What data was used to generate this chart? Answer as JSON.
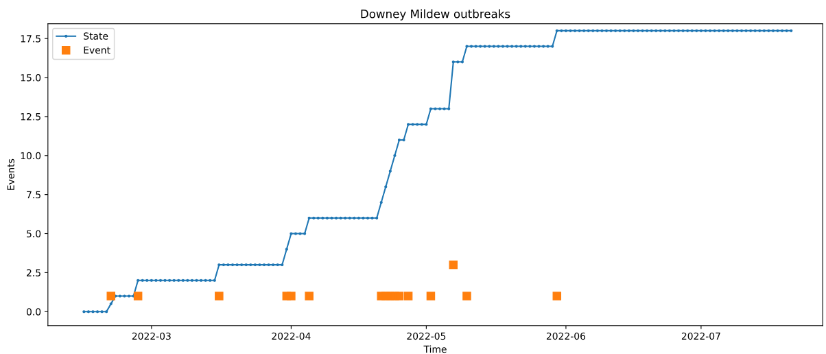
{
  "chart_data": {
    "type": "line",
    "title": "Downey Mildew outbreaks",
    "xlabel": "Time",
    "ylabel": "Events",
    "xlim": [
      "2022-02-06",
      "2022-07-28"
    ],
    "xticks": [
      {
        "value": "2022-03-01",
        "label": "2022-03"
      },
      {
        "value": "2022-04-01",
        "label": "2022-04"
      },
      {
        "value": "2022-05-01",
        "label": "2022-05"
      },
      {
        "value": "2022-06-01",
        "label": "2022-06"
      },
      {
        "value": "2022-07-01",
        "label": "2022-07"
      }
    ],
    "ylim": [
      -0.9,
      18.45
    ],
    "yticks": [
      {
        "value": 0,
        "label": "0.0"
      },
      {
        "value": 2.5,
        "label": "2.5"
      },
      {
        "value": 5,
        "label": "5.0"
      },
      {
        "value": 7.5,
        "label": "7.5"
      },
      {
        "value": 10,
        "label": "10.0"
      },
      {
        "value": 12.5,
        "label": "12.5"
      },
      {
        "value": 15,
        "label": "15.0"
      },
      {
        "value": 17.5,
        "label": "17.5"
      }
    ],
    "legend": "top left",
    "series": [
      {
        "name": "State",
        "color": "#1f77b4",
        "marker": "circle",
        "line_style": "solid",
        "x": [
          "2022-02-14",
          "2022-02-15",
          "2022-02-16",
          "2022-02-17",
          "2022-02-18",
          "2022-02-19",
          "2022-02-20",
          "2022-02-21",
          "2022-02-22",
          "2022-02-23",
          "2022-02-24",
          "2022-02-25",
          "2022-02-26",
          "2022-02-27",
          "2022-02-28",
          "2022-03-01",
          "2022-03-02",
          "2022-03-03",
          "2022-03-04",
          "2022-03-05",
          "2022-03-06",
          "2022-03-07",
          "2022-03-08",
          "2022-03-09",
          "2022-03-10",
          "2022-03-11",
          "2022-03-12",
          "2022-03-13",
          "2022-03-14",
          "2022-03-15",
          "2022-03-16",
          "2022-03-17",
          "2022-03-18",
          "2022-03-19",
          "2022-03-20",
          "2022-03-21",
          "2022-03-22",
          "2022-03-23",
          "2022-03-24",
          "2022-03-25",
          "2022-03-26",
          "2022-03-27",
          "2022-03-28",
          "2022-03-29",
          "2022-03-30",
          "2022-03-31",
          "2022-04-01",
          "2022-04-02",
          "2022-04-03",
          "2022-04-04",
          "2022-04-05",
          "2022-04-06",
          "2022-04-07",
          "2022-04-08",
          "2022-04-09",
          "2022-04-10",
          "2022-04-11",
          "2022-04-12",
          "2022-04-13",
          "2022-04-14",
          "2022-04-15",
          "2022-04-16",
          "2022-04-17",
          "2022-04-18",
          "2022-04-19",
          "2022-04-20",
          "2022-04-21",
          "2022-04-22",
          "2022-04-23",
          "2022-04-24",
          "2022-04-25",
          "2022-04-26",
          "2022-04-27",
          "2022-04-28",
          "2022-04-29",
          "2022-04-30",
          "2022-05-01",
          "2022-05-02",
          "2022-05-03",
          "2022-05-04",
          "2022-05-05",
          "2022-05-06",
          "2022-05-07",
          "2022-05-08",
          "2022-05-09",
          "2022-05-10",
          "2022-05-11",
          "2022-05-12",
          "2022-05-13",
          "2022-05-14",
          "2022-05-15",
          "2022-05-16",
          "2022-05-17",
          "2022-05-18",
          "2022-05-19",
          "2022-05-20",
          "2022-05-21",
          "2022-05-22",
          "2022-05-23",
          "2022-05-24",
          "2022-05-25",
          "2022-05-26",
          "2022-05-27",
          "2022-05-28",
          "2022-05-29",
          "2022-05-30",
          "2022-05-31",
          "2022-06-01",
          "2022-06-02",
          "2022-06-03",
          "2022-06-04",
          "2022-06-05",
          "2022-06-06",
          "2022-06-07",
          "2022-06-08",
          "2022-06-09",
          "2022-06-10",
          "2022-06-11",
          "2022-06-12",
          "2022-06-13",
          "2022-06-14",
          "2022-06-15",
          "2022-06-16",
          "2022-06-17",
          "2022-06-18",
          "2022-06-19",
          "2022-06-20",
          "2022-06-21",
          "2022-06-22",
          "2022-06-23",
          "2022-06-24",
          "2022-06-25",
          "2022-06-26",
          "2022-06-27",
          "2022-06-28",
          "2022-06-29",
          "2022-06-30",
          "2022-07-01",
          "2022-07-02",
          "2022-07-03",
          "2022-07-04",
          "2022-07-05",
          "2022-07-06",
          "2022-07-07",
          "2022-07-08",
          "2022-07-09",
          "2022-07-10",
          "2022-07-11",
          "2022-07-12",
          "2022-07-13",
          "2022-07-14",
          "2022-07-15",
          "2022-07-16",
          "2022-07-17",
          "2022-07-18",
          "2022-07-19",
          "2022-07-20",
          "2022-07-21"
        ],
        "values": [
          0,
          0,
          0,
          0,
          0,
          0,
          0.5,
          1,
          1,
          1,
          1,
          1,
          2,
          2,
          2,
          2,
          2,
          2,
          2,
          2,
          2,
          2,
          2,
          2,
          2,
          2,
          2,
          2,
          2,
          2,
          3,
          3,
          3,
          3,
          3,
          3,
          3,
          3,
          3,
          3,
          3,
          3,
          3,
          3,
          3,
          4,
          5,
          5,
          5,
          5,
          6,
          6,
          6,
          6,
          6,
          6,
          6,
          6,
          6,
          6,
          6,
          6,
          6,
          6,
          6,
          6,
          7,
          8,
          9,
          10,
          11,
          11,
          12,
          12,
          12,
          12,
          12,
          13,
          13,
          13,
          13,
          13,
          16,
          16,
          16,
          17,
          17,
          17,
          17,
          17,
          17,
          17,
          17,
          17,
          17,
          17,
          17,
          17,
          17,
          17,
          17,
          17,
          17,
          17,
          17,
          18,
          18,
          18,
          18,
          18,
          18,
          18,
          18,
          18,
          18,
          18,
          18,
          18,
          18,
          18,
          18,
          18,
          18,
          18,
          18,
          18,
          18,
          18,
          18,
          18,
          18,
          18,
          18,
          18,
          18,
          18,
          18,
          18,
          18,
          18,
          18,
          18,
          18,
          18,
          18,
          18,
          18,
          18,
          18,
          18,
          18,
          18,
          18,
          18,
          18,
          18,
          18,
          18
        ]
      },
      {
        "name": "Event",
        "type": "scatter",
        "color": "#ff7f0e",
        "marker": "square",
        "x": [
          "2022-02-20",
          "2022-02-26",
          "2022-03-16",
          "2022-03-31",
          "2022-04-01",
          "2022-04-05",
          "2022-04-21",
          "2022-04-22",
          "2022-04-23",
          "2022-04-24",
          "2022-04-25",
          "2022-04-27",
          "2022-05-02",
          "2022-05-07",
          "2022-05-10",
          "2022-05-30"
        ],
        "values": [
          1,
          1,
          1,
          1,
          1,
          1,
          1,
          1,
          1,
          1,
          1,
          1,
          1,
          3,
          1,
          1
        ]
      }
    ]
  }
}
